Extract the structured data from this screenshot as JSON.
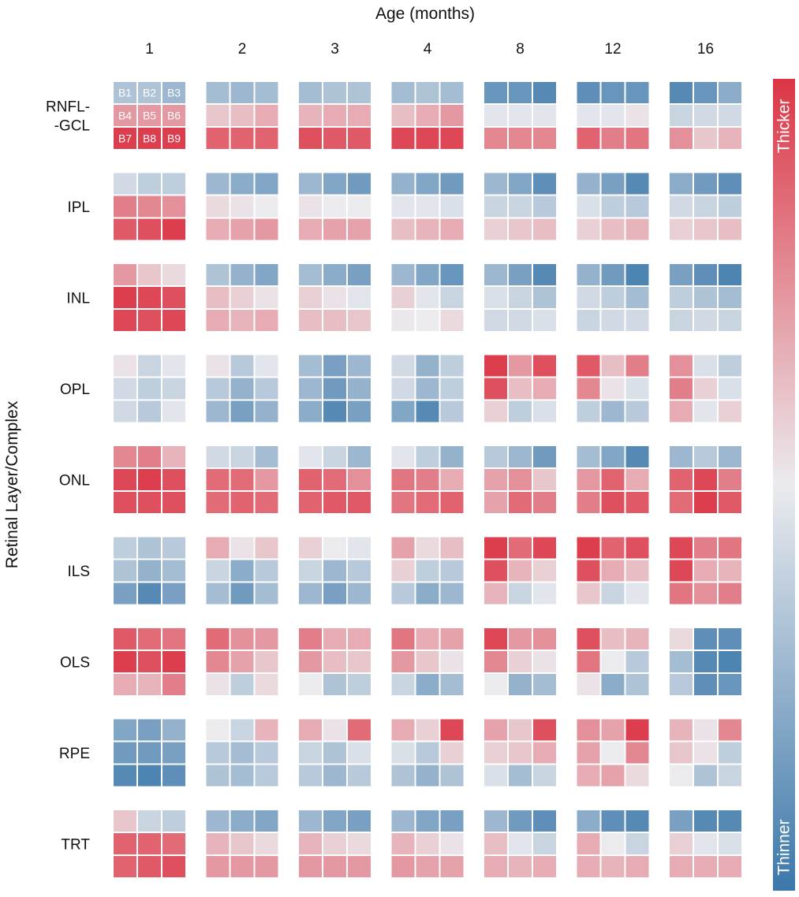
{
  "chart_data": {
    "type": "heatmap",
    "title": "",
    "xlabel": "Age (months)",
    "ylabel": "Retinal Layer/Complex",
    "columns": [
      "1",
      "2",
      "3",
      "4",
      "8",
      "12",
      "16"
    ],
    "rows": [
      "RNFL-\n-GCL",
      "IPL",
      "INL",
      "OPL",
      "ONL",
      "ILS",
      "OLS",
      "RPE",
      "TRT"
    ],
    "cell_labels": [
      "B1",
      "B2",
      "B3",
      "B4",
      "B5",
      "B6",
      "B7",
      "B8",
      "B9"
    ],
    "value_range": [
      -1,
      1
    ],
    "colorbar": {
      "high_label": "Thicker",
      "low_label": "Thinner",
      "high_color": "#dc3545",
      "mid_color": "#ebebee",
      "low_color": "#3c78aa"
    },
    "values": [
      [
        [
          -0.35,
          -0.35,
          -0.45,
          0.45,
          0.45,
          0.45,
          0.95,
          0.95,
          0.95
        ],
        [
          -0.4,
          -0.45,
          -0.4,
          0.2,
          0.25,
          0.35,
          0.75,
          0.75,
          0.75
        ],
        [
          -0.4,
          -0.35,
          -0.35,
          0.3,
          0.35,
          0.35,
          0.85,
          0.8,
          0.8
        ],
        [
          -0.4,
          -0.35,
          -0.4,
          0.25,
          0.35,
          0.45,
          0.9,
          0.9,
          0.9
        ],
        [
          -0.75,
          -0.75,
          -0.85,
          -0.05,
          -0.05,
          -0.05,
          0.55,
          0.55,
          0.55
        ],
        [
          -0.8,
          -0.75,
          -0.75,
          -0.05,
          -0.05,
          0.05,
          0.75,
          0.6,
          0.65
        ],
        [
          -0.85,
          -0.75,
          -0.55,
          -0.2,
          -0.15,
          -0.15,
          0.5,
          0.2,
          0.3
        ]
      ],
      [
        [
          -0.15,
          -0.25,
          -0.25,
          0.6,
          0.55,
          0.5,
          0.8,
          0.85,
          0.95
        ],
        [
          -0.45,
          -0.55,
          -0.6,
          0.1,
          0.05,
          0.0,
          0.35,
          0.4,
          0.45
        ],
        [
          -0.45,
          -0.6,
          -0.7,
          0.05,
          0.0,
          0.0,
          0.35,
          0.4,
          0.4
        ],
        [
          -0.5,
          -0.6,
          -0.7,
          -0.05,
          -0.05,
          -0.1,
          0.25,
          0.3,
          0.35
        ],
        [
          -0.45,
          -0.6,
          -0.8,
          -0.2,
          -0.2,
          -0.3,
          0.15,
          0.2,
          0.25
        ],
        [
          -0.5,
          -0.65,
          -0.85,
          -0.1,
          -0.25,
          -0.3,
          0.15,
          0.25,
          0.3
        ],
        [
          -0.55,
          -0.7,
          -0.8,
          -0.15,
          -0.2,
          -0.25,
          0.15,
          0.2,
          0.25
        ]
      ],
      [
        [
          0.45,
          0.2,
          0.1,
          0.95,
          0.9,
          0.85,
          0.9,
          0.85,
          0.9
        ],
        [
          -0.35,
          -0.5,
          -0.6,
          0.25,
          0.15,
          0.05,
          0.35,
          0.3,
          0.35
        ],
        [
          -0.4,
          -0.55,
          -0.65,
          0.15,
          0.05,
          -0.05,
          0.25,
          0.25,
          0.2
        ],
        [
          -0.45,
          -0.6,
          -0.75,
          0.15,
          -0.05,
          -0.2,
          0.02,
          0.0,
          0.1
        ],
        [
          -0.45,
          -0.65,
          -0.85,
          -0.1,
          -0.2,
          -0.35,
          -0.15,
          -0.15,
          -0.1
        ],
        [
          -0.5,
          -0.7,
          -0.9,
          -0.15,
          -0.25,
          -0.4,
          -0.2,
          -0.15,
          -0.15
        ],
        [
          -0.65,
          -0.8,
          -0.9,
          -0.25,
          -0.35,
          -0.4,
          -0.2,
          -0.15,
          -0.2
        ]
      ],
      [
        [
          0.05,
          -0.2,
          -0.05,
          -0.15,
          -0.25,
          -0.2,
          -0.15,
          -0.3,
          -0.05
        ],
        [
          0.05,
          -0.3,
          -0.05,
          -0.3,
          -0.5,
          -0.3,
          -0.45,
          -0.65,
          -0.5
        ],
        [
          -0.4,
          -0.65,
          -0.45,
          -0.45,
          -0.7,
          -0.5,
          -0.55,
          -0.85,
          -0.65
        ],
        [
          -0.15,
          -0.5,
          -0.25,
          -0.15,
          -0.45,
          -0.25,
          -0.6,
          -0.85,
          -0.3
        ],
        [
          0.95,
          0.45,
          0.85,
          0.85,
          0.25,
          0.35,
          0.15,
          -0.25,
          -0.1
        ],
        [
          0.8,
          0.25,
          0.6,
          0.55,
          0.05,
          -0.1,
          -0.25,
          -0.45,
          -0.3
        ],
        [
          0.5,
          -0.1,
          -0.25,
          0.6,
          0.15,
          -0.1,
          0.35,
          -0.05,
          0.15
        ]
      ],
      [
        [
          0.55,
          0.6,
          0.3,
          0.9,
          0.95,
          0.85,
          0.85,
          0.85,
          0.85
        ],
        [
          -0.15,
          -0.2,
          -0.4,
          0.7,
          0.7,
          0.45,
          0.7,
          0.75,
          0.7
        ],
        [
          -0.05,
          -0.2,
          -0.45,
          0.75,
          0.7,
          0.5,
          0.75,
          0.8,
          0.8
        ],
        [
          -0.05,
          -0.25,
          -0.5,
          0.65,
          0.6,
          0.35,
          0.65,
          0.7,
          0.75
        ],
        [
          -0.3,
          -0.45,
          -0.7,
          0.4,
          0.5,
          0.2,
          0.4,
          0.7,
          0.6
        ],
        [
          -0.4,
          -0.6,
          -0.85,
          0.45,
          0.75,
          0.35,
          0.6,
          0.85,
          0.8
        ],
        [
          -0.45,
          -0.3,
          -0.45,
          0.75,
          0.9,
          0.6,
          0.7,
          0.95,
          0.8
        ]
      ],
      [
        [
          -0.25,
          -0.35,
          -0.3,
          -0.35,
          -0.5,
          -0.4,
          -0.65,
          -0.85,
          -0.65
        ],
        [
          0.35,
          0.05,
          0.2,
          -0.2,
          -0.55,
          -0.3,
          -0.4,
          -0.7,
          -0.4
        ],
        [
          0.15,
          0.0,
          -0.05,
          -0.2,
          -0.45,
          -0.3,
          -0.45,
          -0.65,
          -0.45
        ],
        [
          0.4,
          0.1,
          0.25,
          0.15,
          -0.25,
          -0.3,
          -0.3,
          -0.55,
          -0.45
        ],
        [
          0.95,
          0.7,
          0.9,
          0.85,
          0.3,
          0.15,
          0.3,
          -0.2,
          -0.05
        ],
        [
          0.95,
          0.75,
          0.85,
          0.85,
          0.35,
          0.25,
          0.2,
          -0.2,
          -0.05
        ],
        [
          0.9,
          0.6,
          0.65,
          0.9,
          0.35,
          0.3,
          0.65,
          0.5,
          0.6
        ]
      ],
      [
        [
          0.8,
          0.7,
          0.65,
          0.95,
          0.85,
          0.95,
          0.35,
          0.3,
          0.6
        ],
        [
          0.7,
          0.5,
          0.45,
          0.55,
          0.4,
          0.2,
          0.05,
          -0.25,
          0.1
        ],
        [
          0.6,
          0.35,
          0.35,
          0.45,
          0.25,
          0.2,
          0.0,
          -0.35,
          -0.25
        ],
        [
          0.65,
          0.35,
          0.4,
          0.45,
          0.2,
          0.05,
          -0.2,
          -0.55,
          -0.4
        ],
        [
          0.9,
          0.45,
          0.5,
          0.55,
          0.15,
          0.05,
          0.0,
          -0.5,
          -0.4
        ],
        [
          0.85,
          0.25,
          0.3,
          0.65,
          0.0,
          -0.3,
          0.05,
          -0.55,
          -0.35
        ],
        [
          0.1,
          -0.8,
          -0.8,
          -0.4,
          -0.85,
          -0.9,
          -0.3,
          -0.8,
          -0.75
        ]
      ],
      [
        [
          -0.6,
          -0.65,
          -0.5,
          -0.7,
          -0.7,
          -0.65,
          -0.85,
          -0.9,
          -0.8
        ],
        [
          0.0,
          -0.2,
          0.3,
          -0.3,
          -0.4,
          -0.3,
          -0.35,
          -0.4,
          -0.3
        ],
        [
          0.35,
          0.05,
          0.7,
          -0.2,
          -0.35,
          -0.1,
          -0.3,
          -0.45,
          -0.3
        ],
        [
          0.35,
          0.15,
          0.9,
          -0.1,
          -0.3,
          0.15,
          -0.35,
          -0.5,
          -0.35
        ],
        [
          0.4,
          0.2,
          0.85,
          0.15,
          0.2,
          0.35,
          -0.1,
          -0.4,
          -0.2
        ],
        [
          0.5,
          0.4,
          0.95,
          0.4,
          0.0,
          0.55,
          0.35,
          0.4,
          0.1
        ],
        [
          0.3,
          0.05,
          0.55,
          0.2,
          0.05,
          -0.25,
          0.0,
          -0.35,
          -0.2
        ]
      ],
      [
        [
          0.2,
          -0.2,
          -0.25,
          0.75,
          0.75,
          0.7,
          0.75,
          0.8,
          0.85
        ],
        [
          -0.45,
          -0.55,
          -0.6,
          0.3,
          0.2,
          0.1,
          0.45,
          0.45,
          0.45
        ],
        [
          -0.45,
          -0.6,
          -0.65,
          0.3,
          0.15,
          0.1,
          0.45,
          0.45,
          0.45
        ],
        [
          -0.45,
          -0.6,
          -0.65,
          0.3,
          0.15,
          0.05,
          0.45,
          0.4,
          0.4
        ],
        [
          -0.45,
          -0.7,
          -0.8,
          0.25,
          -0.05,
          -0.2,
          0.35,
          0.3,
          0.35
        ],
        [
          -0.55,
          -0.8,
          -0.85,
          0.35,
          0.0,
          -0.2,
          0.35,
          0.3,
          0.35
        ],
        [
          -0.65,
          -0.85,
          -0.85,
          0.15,
          -0.05,
          -0.1,
          0.35,
          0.35,
          0.35
        ]
      ]
    ]
  }
}
